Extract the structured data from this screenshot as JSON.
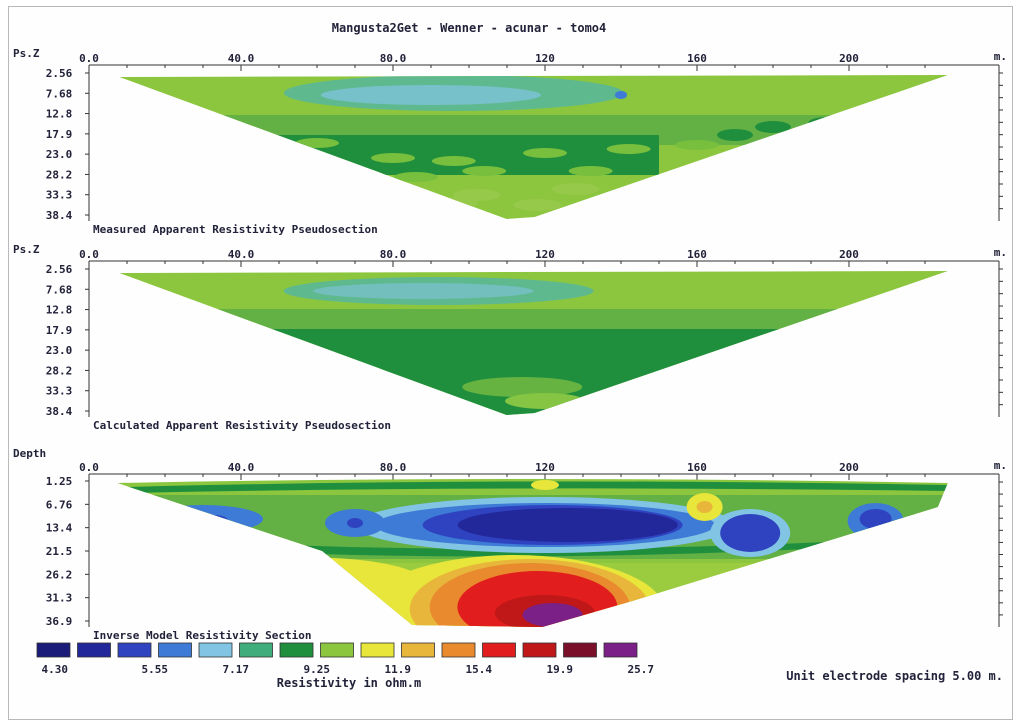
{
  "title": "Mangusta2Get - Wenner - acunar - tomo4",
  "x_unit": "m.",
  "x_ticks": [
    "0.0",
    "40.0",
    "80.0",
    "120",
    "160",
    "200"
  ],
  "panels": [
    {
      "id": "measured",
      "y_label": "Ps.Z",
      "y_ticks": [
        "2.56",
        "7.68",
        "12.8",
        "17.9",
        "23.0",
        "28.2",
        "33.3",
        "38.4"
      ],
      "caption": "Measured Apparent Resistivity Pseudosection"
    },
    {
      "id": "calculated",
      "y_label": "Ps.Z",
      "y_ticks": [
        "2.56",
        "7.68",
        "12.8",
        "17.9",
        "23.0",
        "28.2",
        "33.3",
        "38.4"
      ],
      "caption": "Calculated Apparent Resistivity Pseudosection"
    },
    {
      "id": "inverse",
      "y_label": "Depth",
      "y_ticks": [
        "1.25",
        "6.76",
        "13.4",
        "21.5",
        "26.2",
        "31.3",
        "36.9"
      ],
      "caption": "Inverse Model Resistivity Section"
    }
  ],
  "legend": {
    "title": "Resistivity in ohm.m",
    "labels": [
      "4.30",
      "5.55",
      "7.17",
      "9.25",
      "11.9",
      "15.4",
      "19.9",
      "25.7"
    ],
    "colors": [
      "#1b1b7a",
      "#22279a",
      "#2f43c0",
      "#3d7bd6",
      "#82c4e4",
      "#3fae7c",
      "#1f8f3e",
      "#8cc63f",
      "#e8e63a",
      "#e7b63a",
      "#e98a2e",
      "#e11d1d",
      "#c01818",
      "#7a0f2a",
      "#7b2086"
    ]
  },
  "footer_note": "Unit electrode spacing 5.00 m.",
  "chart_data": {
    "type": "heatmap",
    "title": "Mangusta2Get - Wenner - acunar - tomo4",
    "xlabel": "m.",
    "xlim": [
      0,
      220
    ],
    "x_ticks": [
      0,
      40,
      80,
      120,
      160,
      200
    ],
    "color_scale": {
      "unit": "ohm.m",
      "breaks": [
        4.3,
        5.55,
        7.17,
        9.25,
        11.9,
        15.4,
        19.9,
        25.7
      ],
      "colors": [
        "#1b1b7a",
        "#22279a",
        "#2f43c0",
        "#3d7bd6",
        "#82c4e4",
        "#3fae7c",
        "#1f8f3e",
        "#8cc63f",
        "#e8e63a",
        "#e7b63a",
        "#e98a2e",
        "#e11d1d",
        "#c01818",
        "#7a0f2a",
        "#7b2086"
      ]
    },
    "sections": [
      {
        "name": "Measured Apparent Resistivity Pseudosection",
        "ylabel": "Ps.Z",
        "y_ticks": [
          2.56,
          7.68,
          12.8,
          17.9,
          23.0,
          28.2,
          33.3,
          38.4
        ],
        "ylim": [
          0,
          38.4
        ],
        "extent": {
          "x_left": 8,
          "x_right": 226,
          "x_apex": 112
        },
        "dominant_values": [
          {
            "x": [
              56,
              140
            ],
            "depth": [
              2.5,
              10
            ],
            "resistivity": 9.25
          },
          {
            "x": [
              50,
              170
            ],
            "depth": [
              14,
              30
            ],
            "resistivity": 15.4
          },
          {
            "x": [
              85,
              145
            ],
            "depth": [
              30,
              38
            ],
            "resistivity": 11.9
          }
        ]
      },
      {
        "name": "Calculated Apparent Resistivity Pseudosection",
        "ylabel": "Ps.Z",
        "y_ticks": [
          2.56,
          7.68,
          12.8,
          17.9,
          23.0,
          28.2,
          33.3,
          38.4
        ],
        "ylim": [
          0,
          38.4
        ],
        "extent": {
          "x_left": 8,
          "x_right": 226,
          "x_apex": 112
        },
        "dominant_values": [
          {
            "x": [
              58,
              140
            ],
            "depth": [
              3,
              9
            ],
            "resistivity": 9.25
          },
          {
            "x": [
              40,
              200
            ],
            "depth": [
              17,
              33
            ],
            "resistivity": 15.4
          },
          {
            "x": [
              98,
              130
            ],
            "depth": [
              33,
              38
            ],
            "resistivity": 11.9
          }
        ]
      },
      {
        "name": "Inverse Model Resistivity Section",
        "ylabel": "Depth",
        "y_ticks": [
          1.25,
          6.76,
          13.4,
          21.5,
          26.2,
          31.3,
          36.9
        ],
        "ylim": [
          0,
          36.9
        ],
        "extent": {
          "x_left": 8,
          "x_right": 226,
          "x_apex": 114
        },
        "anomalies": [
          {
            "kind": "conductive",
            "x": [
              88,
              152
            ],
            "depth": [
              4,
              10
            ],
            "resistivity": 4.3
          },
          {
            "kind": "conductive",
            "x": [
              168,
              180
            ],
            "depth": [
              5,
              12
            ],
            "resistivity": 5.55
          },
          {
            "kind": "conductive",
            "x": [
              202,
              212
            ],
            "depth": [
              4,
              9
            ],
            "resistivity": 5.55
          },
          {
            "kind": "conductive",
            "x": [
              28,
              36
            ],
            "depth": [
              4,
              8
            ],
            "resistivity": 7.17
          },
          {
            "kind": "resistive",
            "x": [
              112,
              132
            ],
            "depth": [
              28,
              37
            ],
            "resistivity": 25.7
          },
          {
            "kind": "resistive",
            "x": [
              160,
              164
            ],
            "depth": [
              2,
              5
            ],
            "resistivity": 15.4
          }
        ]
      }
    ]
  }
}
